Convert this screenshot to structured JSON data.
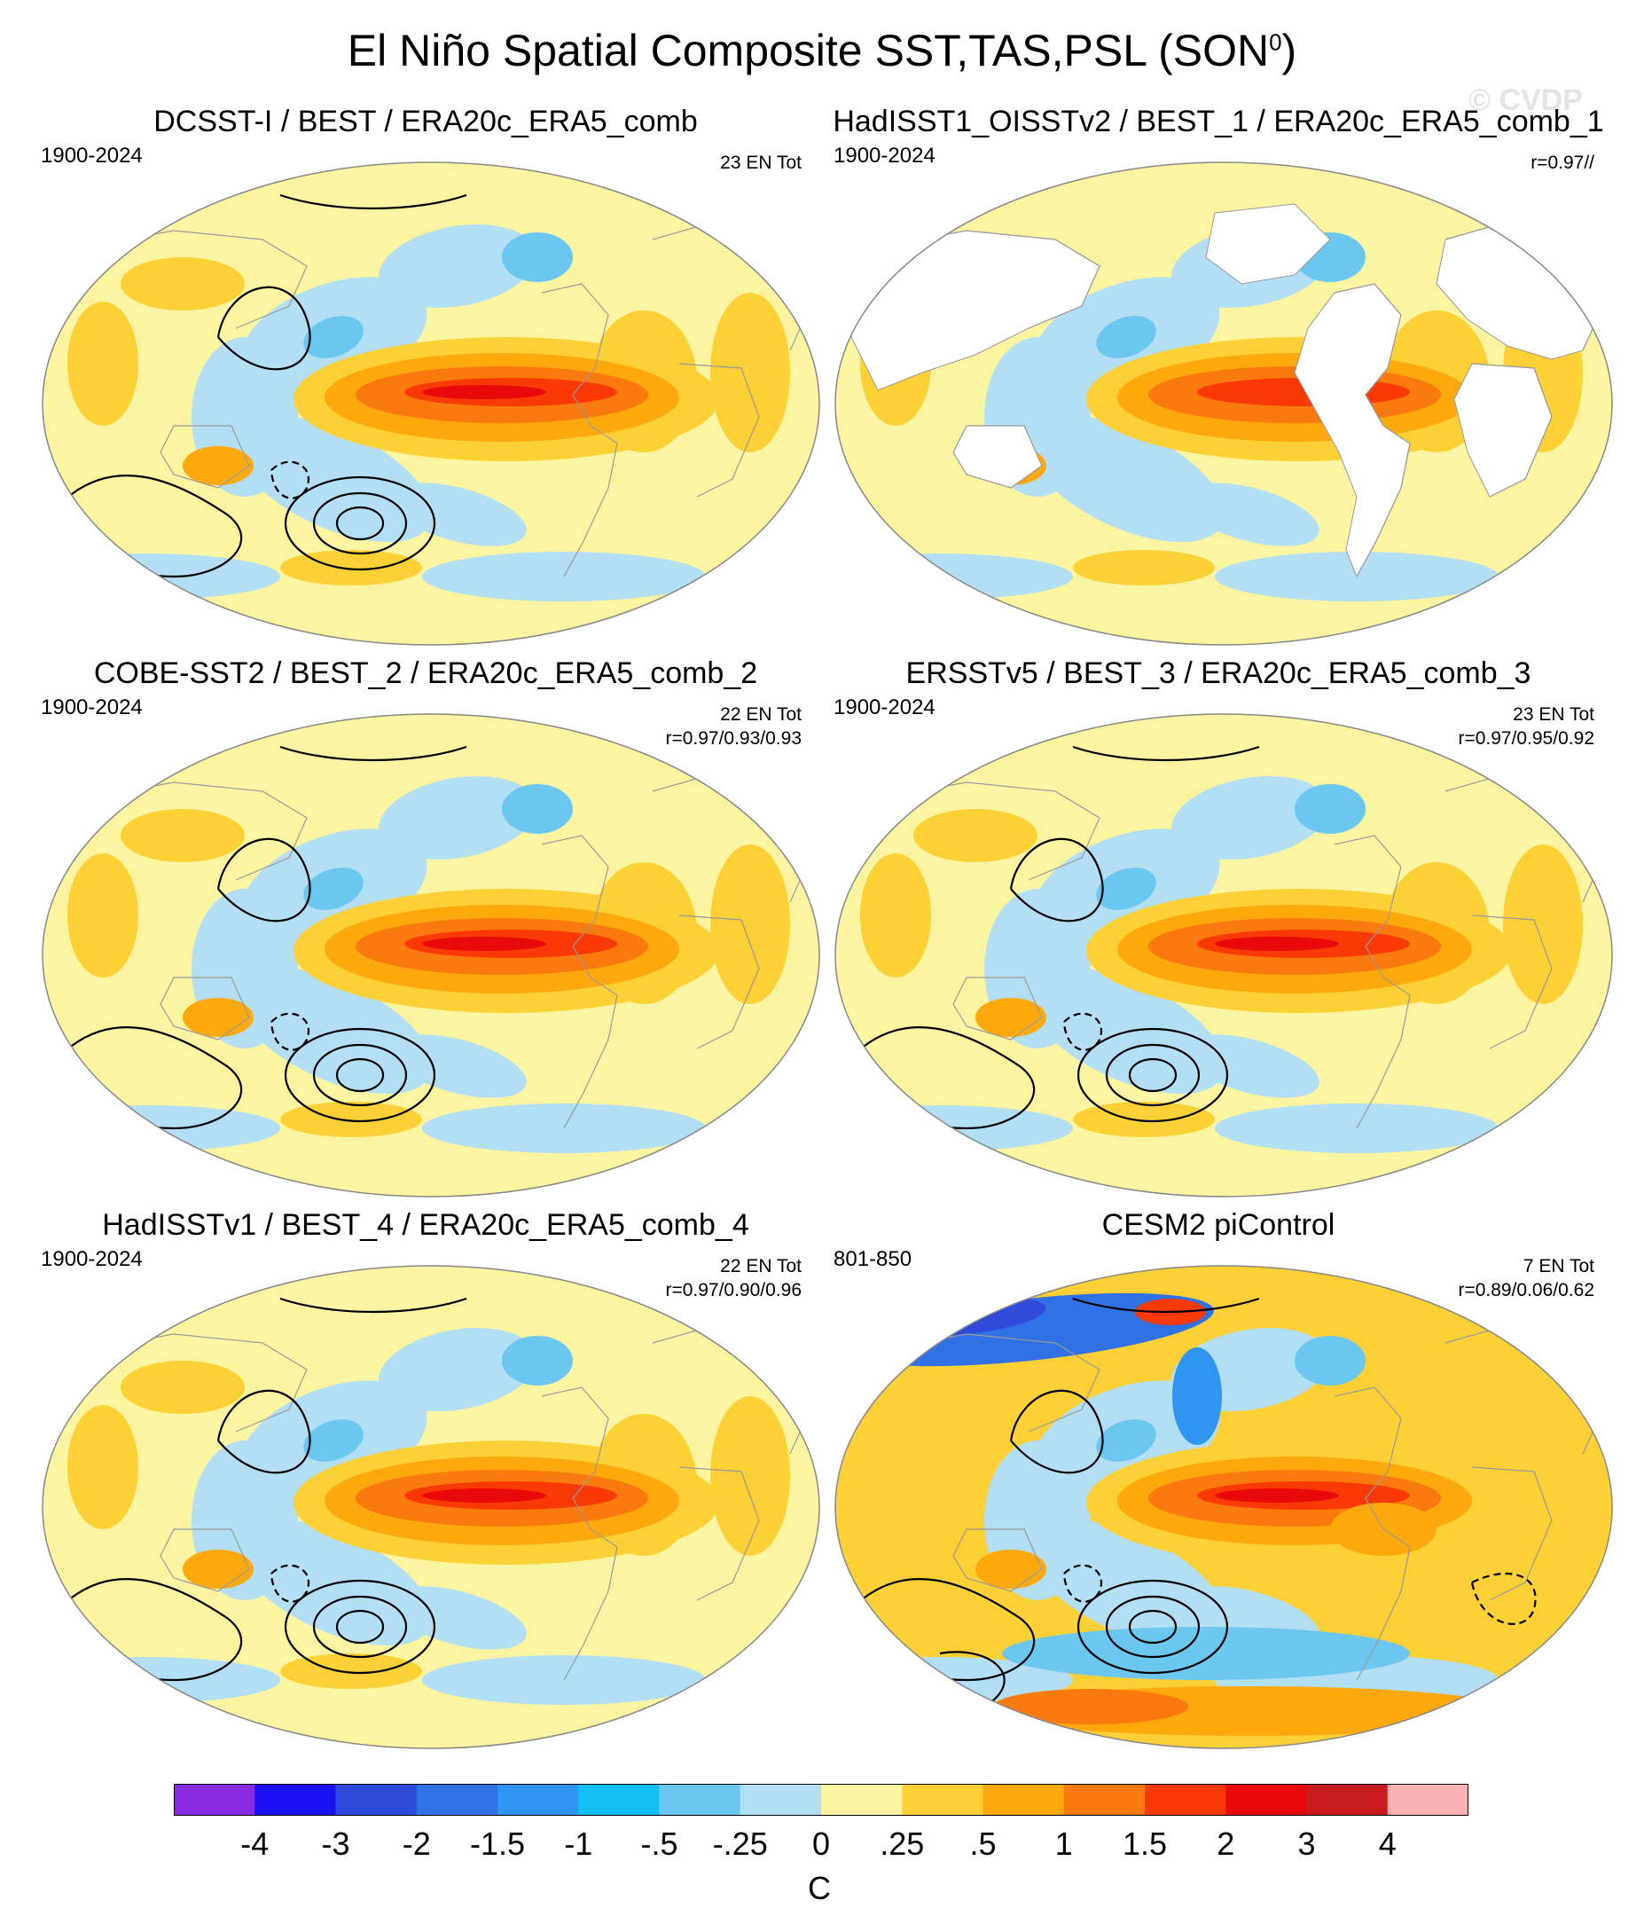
{
  "title": {
    "text": "El Niño Spatial Composite SST,TAS,PSL (SON",
    "sup": "0",
    "close": ")"
  },
  "watermark": "© CVDP",
  "colorbar": {
    "labels": [
      "-4",
      "-3",
      "-2",
      "-1.5",
      "-1",
      "-.5",
      "-.25",
      "0",
      ".25",
      ".5",
      "1",
      "1.5",
      "2",
      "3",
      "4"
    ],
    "colors": [
      "#8a2be2",
      "#1a10f0",
      "#2e4bdc",
      "#2f72e6",
      "#2f95f0",
      "#12bff4",
      "#6cc7f0",
      "#b3dff4",
      "#fbf4a0",
      "#fdd035",
      "#fda80c",
      "#fb7a0d",
      "#f93a06",
      "#e80a0a",
      "#c91c1f",
      "#fbb2b6"
    ],
    "units": "C"
  },
  "panels": [
    {
      "title": "DCSST-I / BEST / ERA20c_ERA5_comb",
      "years": "1900-2024",
      "en": "23 EN Tot",
      "r": ""
    },
    {
      "title": "HadISST1_OISSTv2 / BEST_1 / ERA20c_ERA5_comb_1",
      "years": "1900-2024",
      "en": "",
      "r": "r=0.97//"
    },
    {
      "title": "COBE-SST2 / BEST_2 / ERA20c_ERA5_comb_2",
      "years": "1900-2024",
      "en": "22 EN Tot",
      "r": "r=0.97/0.93/0.93"
    },
    {
      "title": "ERSSTv5 / BEST_3 / ERA20c_ERA5_comb_3",
      "years": "1900-2024",
      "en": "23 EN Tot",
      "r": "r=0.97/0.95/0.92"
    },
    {
      "title": "HadISSTv1 / BEST_4 / ERA20c_ERA5_comb_4",
      "years": "1900-2024",
      "en": "22 EN Tot",
      "r": "r=0.97/0.90/0.96"
    },
    {
      "title": "CESM2 piControl",
      "years": "801-850",
      "en": "7 EN Tot",
      "r": "r=0.89/0.06/0.62"
    }
  ],
  "chart_data": {
    "type": "heatmap",
    "title": "El Niño Spatial Composite SST,TAS,PSL (SON0)",
    "colorbar_levels": [
      -4,
      -3,
      -2,
      -1.5,
      -1,
      -0.5,
      -0.25,
      0,
      0.25,
      0.5,
      1,
      1.5,
      2,
      3,
      4
    ],
    "units": "C",
    "projection": "Robinson (Pacific-centered)",
    "panels": [
      "DCSST-I / BEST / ERA20c_ERA5_comb",
      "HadISST1_OISSTv2 / BEST_1 / ERA20c_ERA5_comb_1",
      "COBE-SST2 / BEST_2 / ERA20c_ERA5_comb_2",
      "ERSSTv5 / BEST_3 / ERA20c_ERA5_comb_3",
      "HadISSTv1 / BEST_4 / ERA20c_ERA5_comb_4",
      "CESM2 piControl"
    ]
  }
}
